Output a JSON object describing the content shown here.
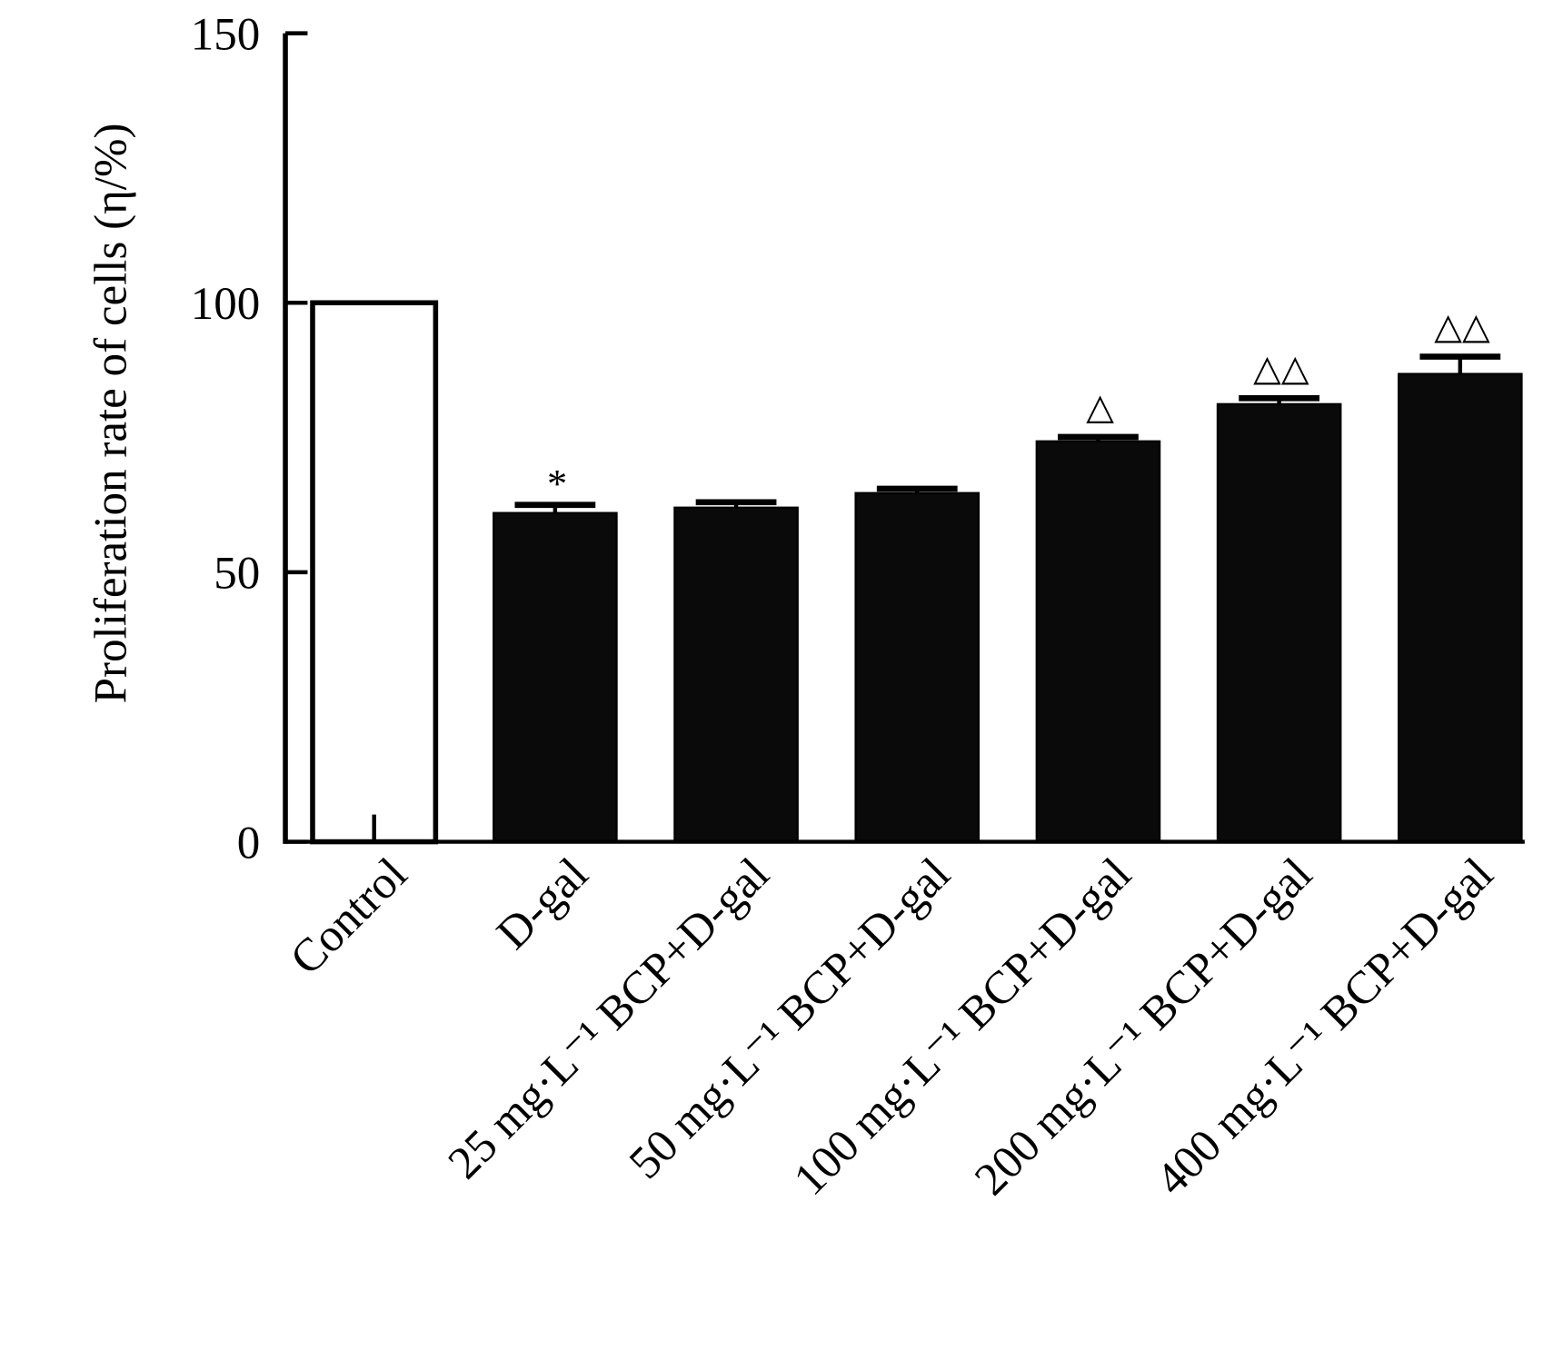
{
  "chart_data": {
    "type": "bar",
    "title": "",
    "xlabel": "",
    "ylabel": "Proliferation rate of cells (η/%)",
    "ylim": [
      0,
      150
    ],
    "yticks": [
      0,
      50,
      100,
      150
    ],
    "grid": false,
    "categories": [
      "Control",
      "D-gal",
      "25 mg·L⁻¹ BCP+D-gal",
      "50 mg·L⁻¹ BCP+D-gal",
      "100 mg·L⁻¹ BCP+D-gal",
      "200 mg·L⁻¹ BCP+D-gal",
      "400 mg·L⁻¹ BCP+D-gal"
    ],
    "values": [
      100,
      61,
      62,
      64.7,
      74.3,
      81.2,
      86.8
    ],
    "errors": [
      0,
      1.5,
      1.0,
      0.8,
      0.8,
      1.1,
      3.2
    ],
    "annotations": [
      "",
      "*",
      "",
      "",
      "△",
      "△△",
      "△△"
    ],
    "bar_fills": [
      "#ffffff",
      "#0a0a0a",
      "#0a0a0a",
      "#0a0a0a",
      "#0a0a0a",
      "#0a0a0a",
      "#0a0a0a"
    ]
  }
}
